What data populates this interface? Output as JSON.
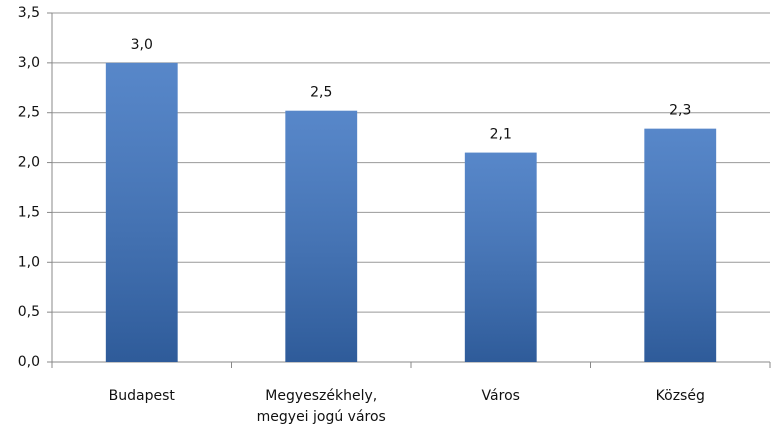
{
  "chart_data": {
    "type": "bar",
    "categories": [
      "Budapest",
      "Megyeszékhely,\nmegyei jogú város",
      "Város",
      "Község"
    ],
    "values": [
      3.0,
      2.52,
      2.1,
      2.34
    ],
    "value_labels": [
      "3,0",
      "2,5",
      "2,1",
      "2,3"
    ],
    "color": "#3a72c0",
    "ylim": [
      0,
      3.5
    ],
    "yticks": [
      {
        "value": 0,
        "label": "0,0"
      },
      {
        "value": 0.5,
        "label": "0,5"
      },
      {
        "value": 1,
        "label": "1,0"
      },
      {
        "value": 1.5,
        "label": "1,5"
      },
      {
        "value": 2,
        "label": "2,0"
      },
      {
        "value": 2.5,
        "label": "2,5"
      },
      {
        "value": 3,
        "label": "3,0"
      },
      {
        "value": 3.5,
        "label": "3,5"
      }
    ],
    "grid": true
  }
}
